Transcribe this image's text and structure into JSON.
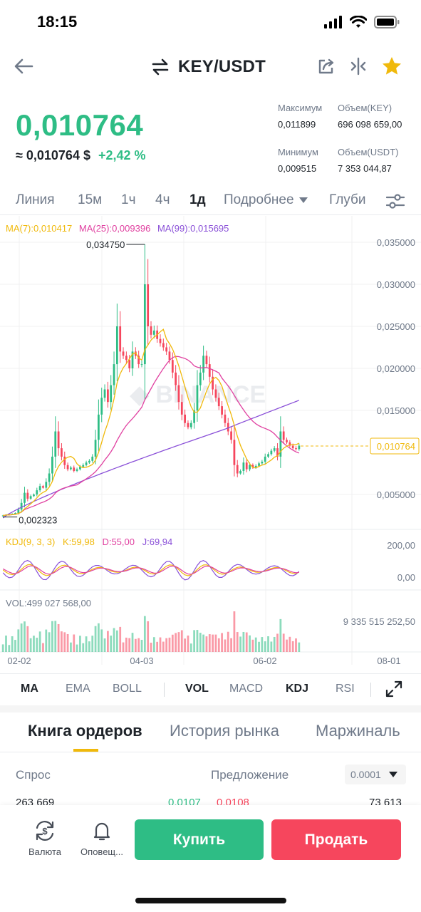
{
  "status": {
    "time": "18:15"
  },
  "header": {
    "pair": "KEY/USDT"
  },
  "price": {
    "last": "0,010764",
    "usd": "≈ 0,010764 $",
    "change": "+2,42 %"
  },
  "stats": {
    "high_label": "Максимум",
    "high_value": "0,011899",
    "vol_key_label": "Объем(KEY)",
    "vol_key_value": "696 098 659,00",
    "low_label": "Минимум",
    "low_value": "0,009515",
    "vol_usdt_label": "Объем(USDT)",
    "vol_usdt_value": "7 353 044,87"
  },
  "timeframes": [
    "Линия",
    "15м",
    "1ч",
    "4ч",
    "1д",
    "Подробнее",
    "Глуби"
  ],
  "active_timeframe": "1д",
  "chart_legend": {
    "ma7": "MA(7):0,010417",
    "ma25": "MA(25):0,009396",
    "ma99": "MA(99):0,015695",
    "kdj": "KDJ(9, 3, 3)",
    "k": "K:59,98",
    "d": "D:55,00",
    "j": "J:69,94",
    "vol": "VOL:499 027 568,00"
  },
  "chart_data": {
    "type": "candlestick",
    "y_ticks": [
      "0,035000",
      "0,030000",
      "0,025000",
      "0,020000",
      "0,015000",
      "0,005000"
    ],
    "y_tick_values": [
      0.035,
      0.03,
      0.025,
      0.02,
      0.015,
      0.005
    ],
    "current_price_label": "0,010764",
    "current_price": 0.010764,
    "max_label": "0,034750",
    "max_value": 0.03475,
    "min_label": "0,002323",
    "min_value": 0.002323,
    "kdj_ticks": [
      "200,00",
      "0,00"
    ],
    "vol_tick": "9 335 515 252,50",
    "x_ticks": [
      "02-02",
      "04-03",
      "06-02",
      "08-01"
    ],
    "close_series": [
      0.0025,
      0.0026,
      0.0026,
      0.0027,
      0.0028,
      0.0032,
      0.004,
      0.0052,
      0.0045,
      0.0048,
      0.005,
      0.0055,
      0.006,
      0.0058,
      0.0065,
      0.0075,
      0.0095,
      0.0125,
      0.0105,
      0.0095,
      0.0085,
      0.008,
      0.0082,
      0.0078,
      0.008,
      0.0083,
      0.0085,
      0.0088,
      0.009,
      0.0095,
      0.0115,
      0.0145,
      0.0165,
      0.0175,
      0.016,
      0.018,
      0.0205,
      0.025,
      0.022,
      0.0215,
      0.021,
      0.02,
      0.022,
      0.0215,
      0.0205,
      0.0205,
      0.03,
      0.025,
      0.024,
      0.0245,
      0.0235,
      0.023,
      0.0225,
      0.022,
      0.021,
      0.0195,
      0.018,
      0.016,
      0.0145,
      0.0135,
      0.013,
      0.0135,
      0.015,
      0.018,
      0.0195,
      0.0215,
      0.0205,
      0.019,
      0.0175,
      0.0165,
      0.0155,
      0.0145,
      0.0135,
      0.0125,
      0.0115,
      0.0085,
      0.0075,
      0.0078,
      0.0088,
      0.008,
      0.0085,
      0.0082,
      0.0084,
      0.0087,
      0.0089,
      0.0095,
      0.0098,
      0.0102,
      0.0105,
      0.0095,
      0.0125,
      0.0115,
      0.0112,
      0.0108,
      0.0105,
      0.0104,
      0.0108
    ]
  },
  "indicators": [
    "MA",
    "EMA",
    "BOLL",
    "VOL",
    "MACD",
    "KDJ",
    "RSI"
  ],
  "tabs": {
    "order_book": "Книга ордеров",
    "market_history": "История рынка",
    "margin": "Маржиналь"
  },
  "order_book": {
    "bid_label": "Спрос",
    "ask_label": "Предложение",
    "step": "0.0001",
    "peek_bid_qty": "263 669",
    "peek_bid_price": "0,0107",
    "peek_ask_price": "0,0108",
    "peek_ask_qty": "73 613"
  },
  "bottom": {
    "currency_label": "Валюта",
    "alerts_label": "Оповещ...",
    "buy_label": "Купить",
    "sell_label": "Продать"
  },
  "colors": {
    "up": "#2ebd85",
    "down": "#f6465d",
    "accent": "#f0b90b",
    "ma7": "#f0b90b",
    "ma25": "#e040a0",
    "ma99": "#8a50d8"
  }
}
